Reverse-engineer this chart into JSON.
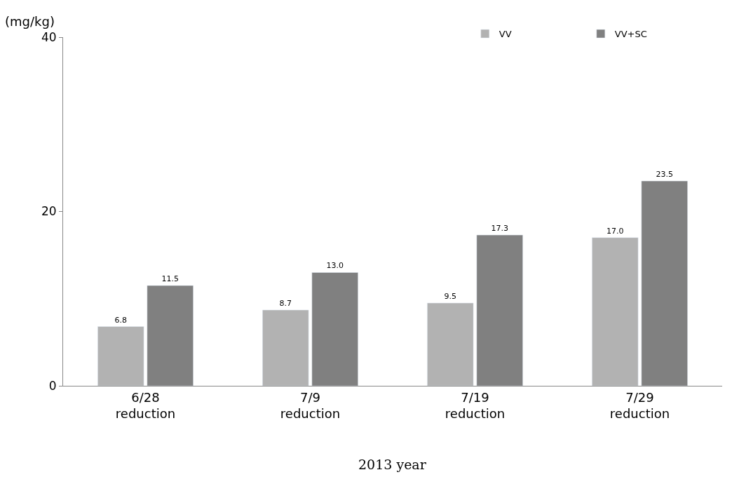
{
  "chart_data": {
    "type": "bar",
    "categories": [
      "6/28\nreduction",
      "7/9\nreduction",
      "7/19\nreduction",
      "7/29\nreduction"
    ],
    "series": [
      {
        "name": "VV",
        "color": "#b2b2b2",
        "values": [
          6.8,
          8.7,
          9.5,
          17.0
        ],
        "value_labels": [
          "6.8",
          "8.7",
          "9.5",
          "17.0"
        ]
      },
      {
        "name": "VV+SC",
        "color": "#808080",
        "values": [
          11.5,
          13.0,
          17.3,
          23.5
        ],
        "value_labels": [
          "11.5",
          "13.0",
          "17.3",
          "23.5"
        ]
      }
    ],
    "ylabel": "(mg/kg)",
    "xlabel": "2013 year",
    "ylim": [
      0,
      40
    ],
    "yticks": [
      0,
      20,
      40
    ],
    "legend": "top right"
  }
}
